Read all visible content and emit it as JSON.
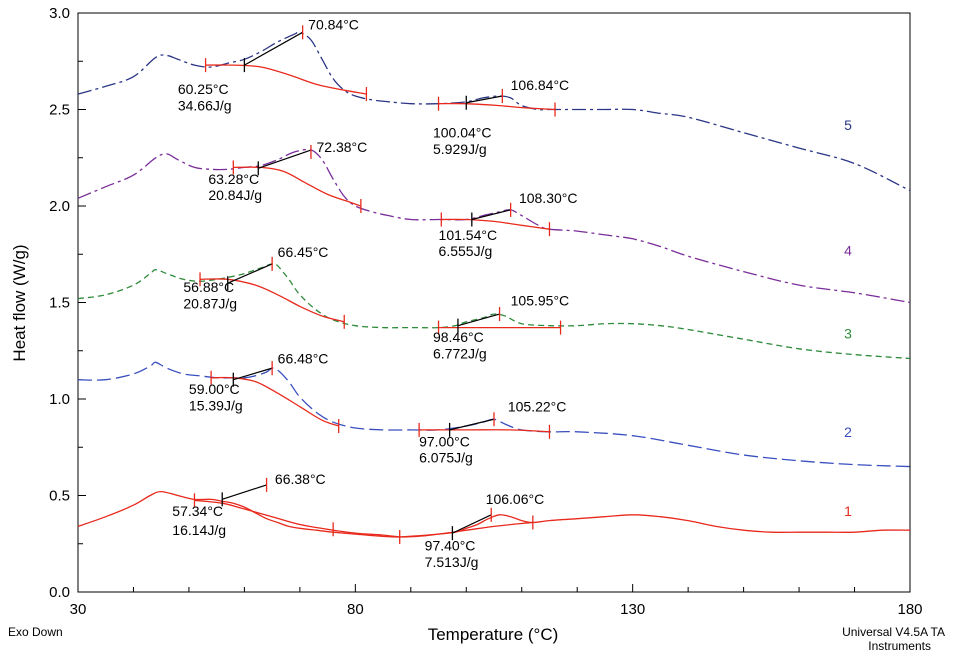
{
  "chart_data": {
    "type": "line",
    "xlabel": "Temperature (°C)",
    "ylabel": "Heat flow (W/g)",
    "xlim": [
      30,
      180
    ],
    "ylim": [
      0.0,
      3.0
    ],
    "x_ticks": [
      30,
      80,
      130,
      180
    ],
    "y_ticks": [
      0.0,
      0.5,
      1.0,
      1.5,
      2.0,
      2.5,
      3.0
    ],
    "grid": false,
    "footer_left": "Exo Down",
    "footer_right_1": "Universal V4.5A TA",
    "footer_right_2": "Instruments",
    "series": [
      {
        "name": "1",
        "color": "#e8291c",
        "dash": "",
        "label_y": 0.42,
        "x": [
          30,
          35,
          40,
          43,
          45,
          48,
          51,
          54,
          56,
          58,
          60,
          62,
          64,
          66,
          68,
          70,
          73,
          76,
          80,
          84,
          88,
          92,
          95,
          98,
          100,
          102,
          104,
          106,
          108,
          110,
          112,
          115,
          120,
          125,
          130,
          135,
          140,
          145,
          150,
          155,
          160,
          165,
          170,
          175,
          180
        ],
        "y": [
          0.34,
          0.39,
          0.45,
          0.5,
          0.52,
          0.5,
          0.48,
          0.48,
          0.47,
          0.46,
          0.44,
          0.41,
          0.38,
          0.36,
          0.34,
          0.33,
          0.32,
          0.31,
          0.3,
          0.29,
          0.285,
          0.29,
          0.3,
          0.31,
          0.33,
          0.35,
          0.38,
          0.4,
          0.39,
          0.37,
          0.36,
          0.37,
          0.38,
          0.39,
          0.4,
          0.39,
          0.37,
          0.34,
          0.32,
          0.31,
          0.31,
          0.31,
          0.31,
          0.32,
          0.32
        ]
      },
      {
        "name": "2",
        "color": "#3a4fbf",
        "dash": "14,5",
        "label_y": 0.83,
        "x": [
          30,
          35,
          40,
          43,
          44,
          46,
          49,
          52,
          55,
          58,
          60,
          62,
          64,
          65,
          66,
          68,
          70,
          73,
          76,
          80,
          85,
          90,
          95,
          100,
          103,
          105,
          107,
          110,
          115,
          120,
          130,
          140,
          150,
          160,
          170,
          180
        ],
        "y": [
          1.1,
          1.1,
          1.13,
          1.17,
          1.19,
          1.16,
          1.13,
          1.12,
          1.11,
          1.11,
          1.11,
          1.12,
          1.14,
          1.16,
          1.15,
          1.09,
          1.01,
          0.93,
          0.88,
          0.85,
          0.84,
          0.84,
          0.84,
          0.86,
          0.88,
          0.895,
          0.87,
          0.84,
          0.83,
          0.83,
          0.81,
          0.76,
          0.71,
          0.68,
          0.66,
          0.65
        ]
      },
      {
        "name": "3",
        "color": "#2e8b3a",
        "dash": "6,4",
        "label_y": 1.34,
        "x": [
          30,
          35,
          40,
          43,
          44,
          46,
          49,
          52,
          55,
          57,
          60,
          63,
          65,
          66,
          68,
          70,
          73,
          76,
          80,
          85,
          90,
          95,
          98,
          100,
          103,
          105,
          107,
          110,
          115,
          120,
          125,
          130,
          135,
          140,
          150,
          160,
          170,
          180
        ],
        "y": [
          1.52,
          1.54,
          1.59,
          1.65,
          1.67,
          1.65,
          1.62,
          1.61,
          1.62,
          1.63,
          1.65,
          1.68,
          1.7,
          1.69,
          1.62,
          1.54,
          1.46,
          1.41,
          1.38,
          1.37,
          1.37,
          1.37,
          1.38,
          1.4,
          1.42,
          1.44,
          1.43,
          1.39,
          1.38,
          1.38,
          1.39,
          1.39,
          1.38,
          1.36,
          1.31,
          1.26,
          1.23,
          1.21
        ]
      },
      {
        "name": "4",
        "color": "#7a2d9a",
        "dash": "14,4,3,4",
        "label_y": 1.77,
        "x": [
          30,
          35,
          40,
          44,
          46,
          48,
          51,
          54,
          57,
          60,
          63,
          66,
          69,
          72,
          74,
          76,
          78,
          80,
          83,
          86,
          90,
          95,
          100,
          103,
          106,
          108,
          110,
          113,
          115,
          120,
          125,
          130,
          135,
          140,
          150,
          160,
          170,
          180
        ],
        "y": [
          2.04,
          2.1,
          2.16,
          2.25,
          2.27,
          2.24,
          2.2,
          2.19,
          2.19,
          2.2,
          2.21,
          2.24,
          2.28,
          2.29,
          2.24,
          2.14,
          2.05,
          2.0,
          1.97,
          1.95,
          1.93,
          1.93,
          1.93,
          1.95,
          1.97,
          1.98,
          1.95,
          1.9,
          1.88,
          1.87,
          1.85,
          1.83,
          1.79,
          1.74,
          1.66,
          1.59,
          1.55,
          1.5
        ]
      },
      {
        "name": "5",
        "color": "#2a3585",
        "dash": "14,4,3,4",
        "label_y": 2.42,
        "x": [
          30,
          35,
          40,
          44,
          46,
          48,
          51,
          54,
          57,
          60,
          63,
          66,
          69,
          70,
          72,
          74,
          76,
          78,
          80,
          83,
          86,
          90,
          95,
          100,
          103,
          106,
          108,
          110,
          113,
          115,
          120,
          125,
          130,
          135,
          140,
          150,
          160,
          170,
          180
        ],
        "y": [
          2.58,
          2.62,
          2.67,
          2.77,
          2.78,
          2.76,
          2.73,
          2.72,
          2.74,
          2.76,
          2.8,
          2.85,
          2.89,
          2.9,
          2.86,
          2.76,
          2.66,
          2.6,
          2.57,
          2.55,
          2.54,
          2.53,
          2.53,
          2.54,
          2.56,
          2.57,
          2.56,
          2.52,
          2.5,
          2.5,
          2.5,
          2.5,
          2.5,
          2.48,
          2.46,
          2.38,
          2.3,
          2.22,
          2.08
        ]
      }
    ],
    "annotations": [
      {
        "curve": "1",
        "baseline": [
          [
            51,
            0.475
          ],
          [
            56,
            0.46
          ],
          [
            60,
            0.43
          ],
          [
            65,
            0.39
          ],
          [
            70,
            0.35
          ],
          [
            75,
            0.325
          ],
          [
            80,
            0.305
          ],
          [
            85,
            0.295
          ],
          [
            88,
            0.285
          ]
        ],
        "tangent": [
          [
            56,
            0.48
          ],
          [
            64,
            0.555
          ]
        ],
        "marks": [
          [
            51,
            0.475
          ],
          [
            64,
            0.555
          ],
          [
            76,
            0.325
          ],
          [
            88,
            0.285
          ]
        ],
        "onset": [
          56,
          0.48
        ],
        "peak_label": "66.38°C",
        "peak_pos": [
          65.5,
          0.56
        ],
        "onset_label": "57.34°C",
        "energy_label": "16.14J/g",
        "onset_text_pos": [
          47,
          0.395
        ],
        "energy_text_pos": [
          47,
          0.295
        ]
      },
      {
        "curve": "1",
        "baseline": [
          [
            88,
            0.285
          ],
          [
            95,
            0.3
          ],
          [
            100,
            0.32
          ],
          [
            105,
            0.34
          ],
          [
            110,
            0.355
          ],
          [
            112,
            0.36
          ]
        ],
        "tangent": [
          [
            97.5,
            0.305
          ],
          [
            104.5,
            0.4
          ]
        ],
        "marks": [
          [
            104.5,
            0.4
          ],
          [
            112,
            0.36
          ]
        ],
        "onset": [
          97.5,
          0.305
        ],
        "peak_label": "106.06°C",
        "peak_pos": [
          103.5,
          0.455
        ],
        "onset_label": "97.40°C",
        "energy_label": "7.513J/g",
        "onset_text_pos": [
          92.5,
          0.215
        ],
        "energy_text_pos": [
          92.5,
          0.13
        ]
      },
      {
        "curve": "2",
        "baseline": [
          [
            54,
            1.11
          ],
          [
            58,
            1.11
          ],
          [
            62,
            1.09
          ],
          [
            66,
            1.03
          ],
          [
            70,
            0.96
          ],
          [
            74,
            0.89
          ],
          [
            77,
            0.86
          ]
        ],
        "tangent": [
          [
            58,
            1.1
          ],
          [
            65,
            1.16
          ]
        ],
        "marks": [
          [
            54,
            1.11
          ],
          [
            65,
            1.16
          ],
          [
            77,
            0.86
          ]
        ],
        "onset": [
          58,
          1.1
        ],
        "peak_label": "66.48°C",
        "peak_pos": [
          66,
          1.185
        ],
        "onset_label": "59.00°C",
        "energy_label": "15.39J/g",
        "onset_text_pos": [
          50,
          1.025
        ],
        "energy_text_pos": [
          50,
          0.94
        ]
      },
      {
        "curve": "2",
        "baseline": [
          [
            91.5,
            0.84
          ],
          [
            100,
            0.84
          ],
          [
            108,
            0.84
          ],
          [
            115,
            0.83
          ]
        ],
        "tangent": [
          [
            97,
            0.84
          ],
          [
            105,
            0.895
          ]
        ],
        "marks": [
          [
            91.5,
            0.84
          ],
          [
            105,
            0.895
          ],
          [
            115,
            0.83
          ]
        ],
        "onset": [
          97,
          0.84
        ],
        "peak_label": "105.22°C",
        "peak_pos": [
          107.5,
          0.935
        ],
        "onset_label": "97.00°C",
        "energy_label": "6.075J/g",
        "onset_text_pos": [
          91.5,
          0.755
        ],
        "energy_text_pos": [
          91.5,
          0.67
        ]
      },
      {
        "curve": "3",
        "baseline": [
          [
            52,
            1.62
          ],
          [
            57,
            1.62
          ],
          [
            62,
            1.59
          ],
          [
            66,
            1.54
          ],
          [
            70,
            1.48
          ],
          [
            74,
            1.43
          ],
          [
            78,
            1.4
          ]
        ],
        "tangent": [
          [
            57,
            1.6
          ],
          [
            65,
            1.7
          ]
        ],
        "marks": [
          [
            52,
            1.62
          ],
          [
            65,
            1.7
          ],
          [
            78,
            1.4
          ]
        ],
        "onset": [
          57,
          1.6
        ],
        "peak_label": "66.45°C",
        "peak_pos": [
          66,
          1.735
        ],
        "onset_label": "56.88°C",
        "energy_label": "20.87J/g",
        "onset_text_pos": [
          49,
          1.555
        ],
        "energy_text_pos": [
          49,
          1.47
        ]
      },
      {
        "curve": "3",
        "baseline": [
          [
            95,
            1.37
          ],
          [
            100,
            1.37
          ],
          [
            110,
            1.37
          ],
          [
            117,
            1.37
          ]
        ],
        "tangent": [
          [
            98.5,
            1.38
          ],
          [
            106,
            1.44
          ]
        ],
        "marks": [
          [
            95,
            1.37
          ],
          [
            106,
            1.44
          ],
          [
            117,
            1.37
          ]
        ],
        "onset": [
          98.5,
          1.38
        ],
        "peak_label": "105.95°C",
        "peak_pos": [
          108,
          1.485
        ],
        "onset_label": "98.46°C",
        "energy_label": "6.772J/g",
        "onset_text_pos": [
          94,
          1.295
        ],
        "energy_text_pos": [
          94,
          1.21
        ]
      },
      {
        "curve": "4",
        "baseline": [
          [
            58,
            2.2
          ],
          [
            63,
            2.2
          ],
          [
            67,
            2.18
          ],
          [
            71,
            2.12
          ],
          [
            75,
            2.06
          ],
          [
            79,
            2.02
          ],
          [
            81,
            2.0
          ]
        ],
        "tangent": [
          [
            62.5,
            2.195
          ],
          [
            72,
            2.29
          ]
        ],
        "marks": [
          [
            58,
            2.2
          ],
          [
            72,
            2.28
          ],
          [
            81,
            2.0
          ]
        ],
        "onset": [
          62.5,
          2.195
        ],
        "peak_label": "72.38°C",
        "peak_pos": [
          73,
          2.28
        ],
        "onset_label": "63.28°C",
        "energy_label": "20.84J/g",
        "onset_text_pos": [
          53.5,
          2.115
        ],
        "energy_text_pos": [
          53.5,
          2.03
        ]
      },
      {
        "curve": "4",
        "baseline": [
          [
            95.5,
            1.93
          ],
          [
            100,
            1.93
          ],
          [
            105,
            1.92
          ],
          [
            110,
            1.9
          ],
          [
            115,
            1.88
          ]
        ],
        "tangent": [
          [
            101,
            1.93
          ],
          [
            108,
            1.98
          ]
        ],
        "marks": [
          [
            95.5,
            1.93
          ],
          [
            108,
            1.98
          ],
          [
            115,
            1.88
          ]
        ],
        "onset": [
          101,
          1.93
        ],
        "peak_label": "108.30°C",
        "peak_pos": [
          109.5,
          2.015
        ],
        "onset_label": "101.54°C",
        "energy_label": "6.555J/g",
        "onset_text_pos": [
          95,
          1.825
        ],
        "energy_text_pos": [
          95,
          1.74
        ]
      },
      {
        "curve": "5",
        "baseline": [
          [
            53,
            2.73
          ],
          [
            58,
            2.73
          ],
          [
            63,
            2.72
          ],
          [
            68,
            2.68
          ],
          [
            73,
            2.63
          ],
          [
            78,
            2.6
          ],
          [
            82,
            2.58
          ]
        ],
        "tangent": [
          [
            60,
            2.73
          ],
          [
            70.5,
            2.9
          ]
        ],
        "marks": [
          [
            53,
            2.73
          ],
          [
            70.5,
            2.9
          ],
          [
            82,
            2.58
          ]
        ],
        "onset": [
          60,
          2.73
        ],
        "peak_label": "70.84°C",
        "peak_pos": [
          71.5,
          2.915
        ],
        "onset_label": "60.25°C",
        "energy_label": "34.66J/g",
        "onset_text_pos": [
          48,
          2.58
        ],
        "energy_text_pos": [
          48,
          2.495
        ]
      },
      {
        "curve": "5",
        "baseline": [
          [
            95,
            2.53
          ],
          [
            100,
            2.53
          ],
          [
            106,
            2.52
          ],
          [
            110,
            2.51
          ],
          [
            116,
            2.5
          ]
        ],
        "tangent": [
          [
            100,
            2.535
          ],
          [
            106.5,
            2.57
          ]
        ],
        "marks": [
          [
            95,
            2.53
          ],
          [
            106.5,
            2.57
          ],
          [
            116,
            2.5
          ]
        ],
        "onset": [
          100,
          2.535
        ],
        "peak_label": "106.84°C",
        "peak_pos": [
          108,
          2.6
        ],
        "onset_label": "100.04°C",
        "energy_label": "5.929J/g",
        "onset_text_pos": [
          94,
          2.355
        ],
        "energy_text_pos": [
          94,
          2.27
        ]
      }
    ]
  }
}
